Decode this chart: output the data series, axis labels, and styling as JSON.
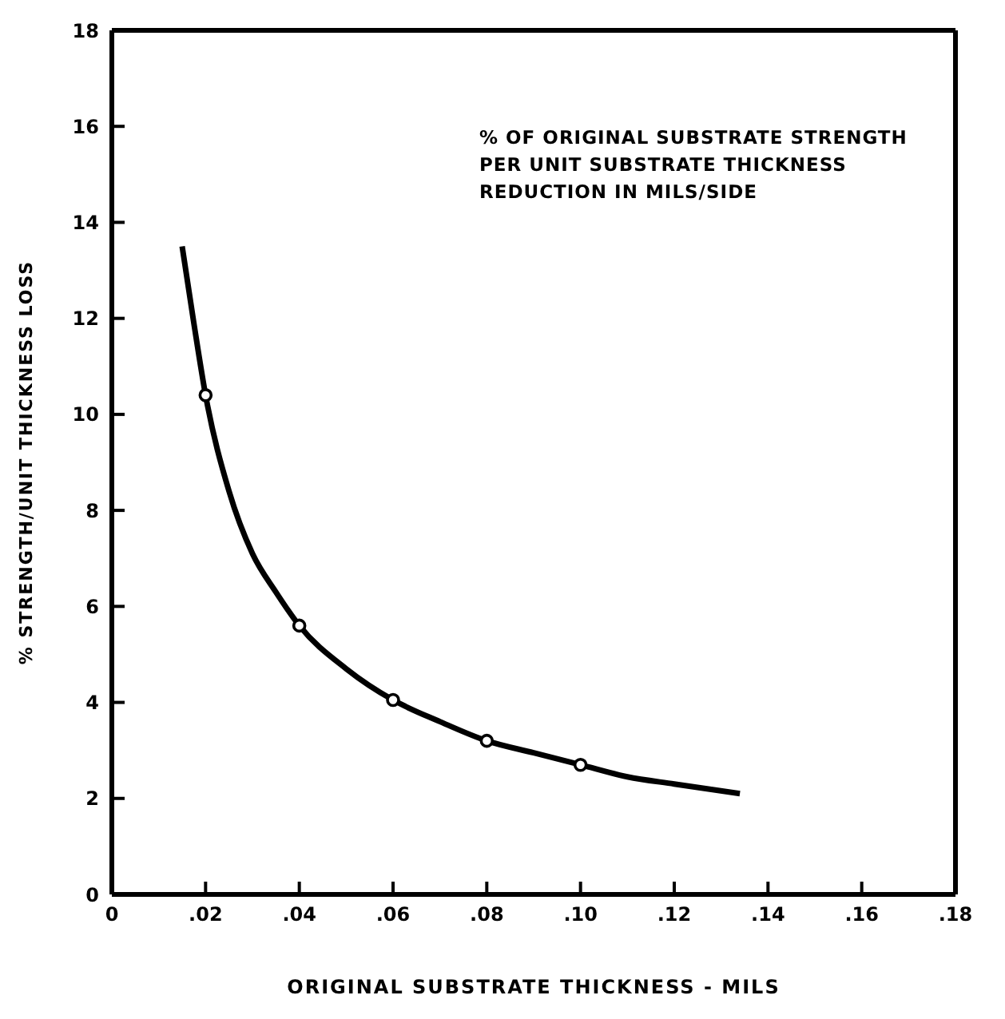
{
  "chart_data": {
    "type": "line",
    "xlabel": "ORIGINAL SUBSTRATE THICKNESS - MILS",
    "ylabel": "% STRENGTH/UNIT THICKNESS LOSS",
    "annotations": [
      "% OF ORIGINAL SUBSTRATE STRENGTH\nPER UNIT SUBSTRATE THICKNESS\nREDUCTION IN MILS/SIDE"
    ],
    "series": [
      {
        "color": "#000000",
        "marker": "none",
        "x": [
          0.015,
          0.0175,
          0.02,
          0.025,
          0.03,
          0.035,
          0.04,
          0.05,
          0.06,
          0.07,
          0.08,
          0.09,
          0.1,
          0.11,
          0.12,
          0.134
        ],
        "values": [
          13.5,
          11.9,
          10.4,
          8.4,
          7.1,
          6.3,
          5.6,
          4.7,
          4.05,
          3.6,
          3.2,
          2.95,
          2.7,
          2.45,
          2.3,
          2.1
        ]
      },
      {
        "type": "scatter",
        "color": "#000000",
        "marker": "circle",
        "x": [
          0.02,
          0.04,
          0.06,
          0.08,
          0.1
        ],
        "values": [
          10.4,
          5.6,
          4.05,
          3.2,
          2.7
        ]
      }
    ],
    "xlim": [
      0,
      0.18
    ],
    "xticks": [
      0,
      {
        "value": 0.02,
        "label": ".02"
      },
      {
        "value": 0.04,
        "label": ".04"
      },
      {
        "value": 0.06,
        "label": ".06"
      },
      {
        "value": 0.08,
        "label": ".08"
      },
      {
        "value": 0.1,
        "label": ".10"
      },
      {
        "value": 0.12,
        "label": ".12"
      },
      {
        "value": 0.14,
        "label": ".14"
      },
      {
        "value": 0.16,
        "label": ".16"
      },
      {
        "value": 0.18,
        "label": ".18"
      }
    ],
    "ylim": [
      0,
      18
    ],
    "yticks": [
      0,
      2,
      4,
      6,
      8,
      10,
      12,
      14,
      16,
      18
    ]
  }
}
